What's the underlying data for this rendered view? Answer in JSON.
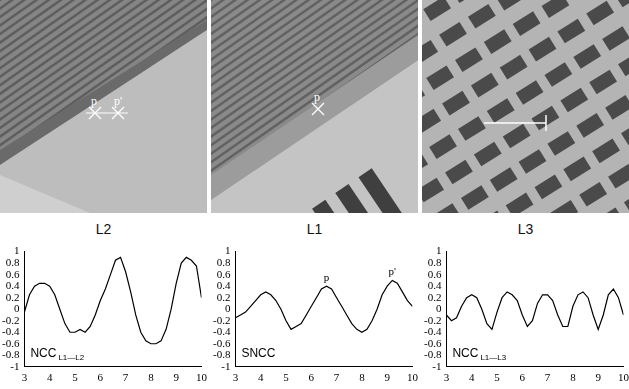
{
  "images": [
    {
      "label": "L2",
      "markers": [
        "p",
        "p'"
      ]
    },
    {
      "label": "L1",
      "markers": [
        "p"
      ]
    },
    {
      "label": "L3"
    }
  ],
  "chart_data": [
    {
      "type": "line",
      "label": "NCC",
      "label_sub": "L1—L2",
      "color": "#000000",
      "grid": false,
      "x": [
        3,
        3.2,
        3.4,
        3.6,
        3.8,
        4.0,
        4.2,
        4.4,
        4.6,
        4.8,
        5.0,
        5.2,
        5.4,
        5.6,
        5.8,
        6.0,
        6.2,
        6.4,
        6.6,
        6.8,
        7.0,
        7.2,
        7.4,
        7.6,
        7.8,
        8.0,
        8.2,
        8.4,
        8.6,
        8.8,
        9.0,
        9.2,
        9.4,
        9.6,
        9.8,
        10
      ],
      "values": [
        -0.05,
        0.25,
        0.4,
        0.45,
        0.45,
        0.4,
        0.25,
        0.0,
        -0.25,
        -0.4,
        -0.4,
        -0.35,
        -0.4,
        -0.3,
        -0.1,
        0.15,
        0.35,
        0.6,
        0.85,
        0.9,
        0.65,
        0.3,
        -0.1,
        -0.4,
        -0.55,
        -0.6,
        -0.6,
        -0.55,
        -0.35,
        0.0,
        0.45,
        0.8,
        0.9,
        0.85,
        0.75,
        0.2
      ],
      "xlim": [
        3,
        10
      ],
      "xticks": [
        3,
        4,
        5,
        6,
        7,
        8,
        9,
        10
      ],
      "ylim": [
        -1,
        1
      ],
      "yticks": [
        -1,
        -0.8,
        -0.6,
        -0.4,
        -0.2,
        0,
        0.2,
        0.4,
        0.6,
        0.8,
        1
      ]
    },
    {
      "type": "line",
      "label": "SNCC",
      "color": "#000000",
      "grid": false,
      "x": [
        3,
        3.2,
        3.4,
        3.6,
        3.8,
        4.0,
        4.2,
        4.4,
        4.6,
        4.8,
        5.0,
        5.2,
        5.4,
        5.6,
        5.8,
        6.0,
        6.2,
        6.4,
        6.6,
        6.8,
        7.0,
        7.2,
        7.4,
        7.6,
        7.8,
        8.0,
        8.2,
        8.4,
        8.6,
        8.8,
        9.0,
        9.2,
        9.4,
        9.6,
        9.8,
        10
      ],
      "values": [
        -0.15,
        -0.1,
        -0.05,
        0.05,
        0.15,
        0.25,
        0.3,
        0.25,
        0.15,
        0.0,
        -0.2,
        -0.35,
        -0.3,
        -0.25,
        -0.1,
        0.05,
        0.2,
        0.35,
        0.4,
        0.35,
        0.2,
        0.05,
        -0.1,
        -0.25,
        -0.35,
        -0.4,
        -0.35,
        -0.2,
        0.0,
        0.25,
        0.4,
        0.5,
        0.45,
        0.3,
        0.15,
        0.05
      ],
      "annotations": [
        {
          "text": "p",
          "x": 6.6,
          "y": 0.4
        },
        {
          "text": "p'",
          "x": 9.2,
          "y": 0.5
        }
      ],
      "xlim": [
        3,
        10
      ],
      "xticks": [
        3,
        4,
        5,
        6,
        7,
        8,
        9,
        10
      ],
      "ylim": [
        -1,
        1
      ],
      "yticks": [
        -1,
        -0.8,
        -0.6,
        -0.4,
        -0.2,
        0,
        0.2,
        0.4,
        0.6,
        0.8,
        1
      ]
    },
    {
      "type": "line",
      "label": "NCC",
      "label_sub": "L1—L3",
      "color": "#000000",
      "grid": false,
      "x": [
        3,
        3.2,
        3.4,
        3.6,
        3.8,
        4.0,
        4.2,
        4.4,
        4.6,
        4.8,
        5.0,
        5.2,
        5.4,
        5.6,
        5.8,
        6.0,
        6.2,
        6.4,
        6.6,
        6.8,
        7.0,
        7.2,
        7.4,
        7.6,
        7.8,
        8.0,
        8.2,
        8.4,
        8.6,
        8.8,
        9.0,
        9.2,
        9.4,
        9.6,
        9.8,
        10
      ],
      "values": [
        -0.1,
        -0.2,
        -0.15,
        0.05,
        0.2,
        0.25,
        0.2,
        0.0,
        -0.25,
        -0.35,
        -0.05,
        0.2,
        0.3,
        0.25,
        0.15,
        -0.1,
        -0.3,
        -0.2,
        0.1,
        0.25,
        0.25,
        0.15,
        -0.1,
        -0.3,
        -0.3,
        0.05,
        0.25,
        0.3,
        0.2,
        -0.1,
        -0.35,
        -0.1,
        0.25,
        0.35,
        0.2,
        -0.1
      ],
      "xlim": [
        3,
        10
      ],
      "xticks": [
        3,
        4,
        5,
        6,
        7,
        8,
        9,
        10
      ],
      "ylim": [
        -1,
        1
      ],
      "yticks": [
        -1,
        -0.8,
        -0.6,
        -0.4,
        -0.2,
        0,
        0.2,
        0.4,
        0.6,
        0.8,
        1
      ]
    }
  ]
}
